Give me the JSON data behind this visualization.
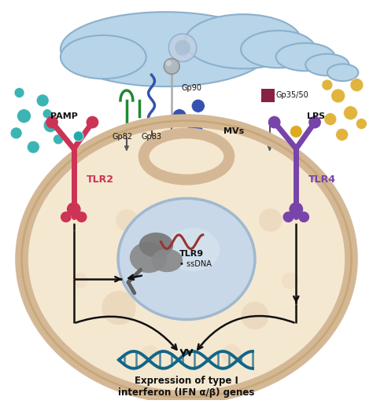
{
  "bg_color": "#ffffff",
  "cell_membrane_color": "#d4b896",
  "cell_interior_color": "#f5e8d0",
  "nucleus_color": "#c8d8e8",
  "nucleus_border_color": "#a0b8d0",
  "parasite_color": "#b8d4e8",
  "parasite_border_color": "#8ab0cc",
  "tlr2_color": "#cc3355",
  "tlr4_color": "#7744aa",
  "tlr9_color": "#888888",
  "ssdna_color": "#993333",
  "gp82_color": "#228833",
  "gp83_color": "#3355aa",
  "pamp_color": "#22aaaa",
  "mvs_color": "#2244aa",
  "lps_color": "#ddaa22",
  "gp3550_color": "#882244",
  "dna_color": "#116688",
  "arrow_color": "#111111",
  "text_color": "#111111",
  "title_text": "Expression of type I\ninterferon (IFN α/β) genes",
  "tlr2_label": "TLR2",
  "tlr4_label": "TLR4",
  "tlr9_label": "TLR9",
  "pamp_label": "PAMP",
  "gp82_label": "Gp82",
  "gp83_label": "Gp83",
  "gp90_label": "Gp90",
  "mvs_label": "MVs",
  "gp3550_label": "Gp35/50",
  "lps_label": "LPS",
  "ssdna_label": "• ssDNA"
}
